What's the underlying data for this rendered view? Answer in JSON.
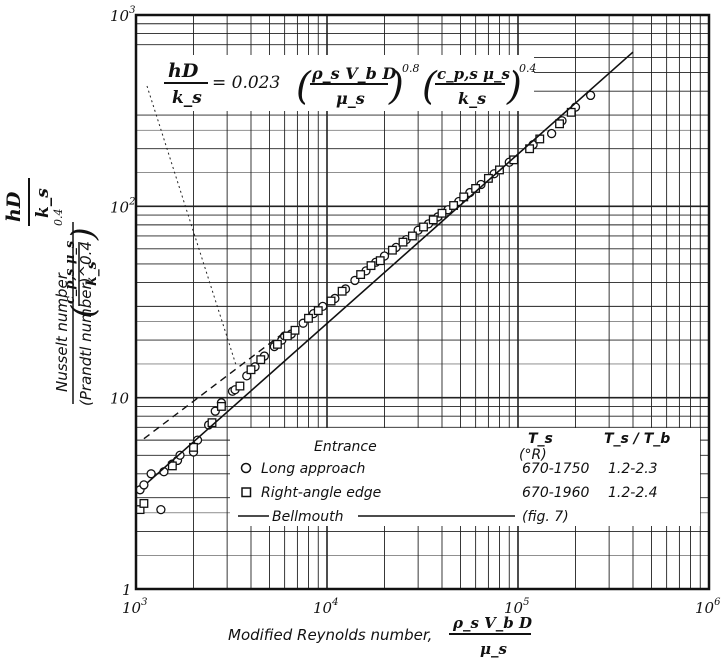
{
  "chart_data": {
    "type": "scatter",
    "x_scale": "log",
    "y_scale": "log",
    "xlim": [
      1000,
      1000000
    ],
    "ylim": [
      1,
      1000
    ],
    "grid": true,
    "x_ticks": [
      {
        "base": "10",
        "exp": "3",
        "value": 1000
      },
      {
        "base": "10",
        "exp": "4",
        "value": 10000
      },
      {
        "base": "10",
        "exp": "5",
        "value": 100000
      },
      {
        "base": "10",
        "exp": "6",
        "value": 1000000
      }
    ],
    "y_ticks": [
      {
        "base": "1",
        "exp": "",
        "value": 1
      },
      {
        "base": "10",
        "exp": "",
        "value": 10
      },
      {
        "base": "10",
        "exp": "2",
        "value": 100
      },
      {
        "base": "10",
        "exp": "3",
        "value": 1000
      }
    ],
    "xlabel": "Modified Reynolds number,",
    "xlabel_fraction": {
      "num": "ρ_s V_b D",
      "den": "μ_s"
    },
    "ylabel": {
      "top_num": "hD",
      "top_den": "k_s",
      "line1": "Nusselt number",
      "line2": "(Prandtl number)^0.4",
      "frac_num": "c_p,s μ_s",
      "frac_den": "k_s",
      "power": "0.4"
    },
    "equation": {
      "lhs_num": "hD",
      "lhs_den": "k_s",
      "eq": "= 0.023",
      "f1_num": "ρ_s V_b D",
      "f1_den": "μ_s",
      "p1": "0.8",
      "f2_num": "c_p,s μ_s",
      "f2_den": "k_s",
      "p2": "0.4"
    },
    "legend": {
      "header_entrance": "Entrance",
      "header_ts": "T_s",
      "header_ts_unit": "(°R)",
      "header_ratio": "T_s / T_b",
      "entries": [
        {
          "marker": "circle",
          "label": "Long approach",
          "ts_range": "670-1750",
          "ratio_range": "1.2-2.3"
        },
        {
          "marker": "square",
          "label": "Right-angle edge",
          "ts_range": "670-1960",
          "ratio_range": "1.2-2.4"
        },
        {
          "marker": "line",
          "label": "Bellmouth",
          "ts_range": "(fig. 7)",
          "ratio_range": ""
        }
      ]
    },
    "series": [
      {
        "name": "Long approach",
        "marker": "circle",
        "points": [
          [
            1050,
            3.3
          ],
          [
            1100,
            3.5
          ],
          [
            1200,
            4.0
          ],
          [
            1350,
            2.6
          ],
          [
            1400,
            4.1
          ],
          [
            1550,
            4.5
          ],
          [
            1650,
            4.7
          ],
          [
            1700,
            5.0
          ],
          [
            2000,
            5.2
          ],
          [
            2100,
            6.0
          ],
          [
            2400,
            7.2
          ],
          [
            2600,
            8.5
          ],
          [
            2800,
            9.4
          ],
          [
            3200,
            10.8
          ],
          [
            3300,
            11.0
          ],
          [
            3800,
            13.0
          ],
          [
            4200,
            14.5
          ],
          [
            4700,
            16.5
          ],
          [
            5300,
            18.5
          ],
          [
            5800,
            20.0
          ],
          [
            6000,
            21.0
          ],
          [
            6500,
            21.5
          ],
          [
            7500,
            24.5
          ],
          [
            8500,
            27.5
          ],
          [
            9500,
            30.0
          ],
          [
            11000,
            33.0
          ],
          [
            12500,
            37.0
          ],
          [
            14000,
            41.0
          ],
          [
            16000,
            46.0
          ],
          [
            18000,
            51.0
          ],
          [
            20000,
            55.0
          ],
          [
            23000,
            61.0
          ],
          [
            26000,
            67.0
          ],
          [
            30000,
            75.0
          ],
          [
            34000,
            81.0
          ],
          [
            38000,
            88.0
          ],
          [
            43000,
            96.0
          ],
          [
            49000,
            106.0
          ],
          [
            56000,
            118.0
          ],
          [
            64000,
            130.0
          ],
          [
            75000,
            148.0
          ],
          [
            90000,
            170.0
          ],
          [
            120000,
            210.0
          ],
          [
            150000,
            240.0
          ],
          [
            170000,
            280.0
          ],
          [
            200000,
            330.0
          ],
          [
            240000,
            380.0
          ]
        ]
      },
      {
        "name": "Right-angle edge",
        "marker": "square",
        "points": [
          [
            1050,
            2.6
          ],
          [
            1100,
            2.8
          ],
          [
            1550,
            4.4
          ],
          [
            2000,
            5.5
          ],
          [
            2500,
            7.4
          ],
          [
            2800,
            9.0
          ],
          [
            3500,
            11.5
          ],
          [
            4000,
            14.0
          ],
          [
            4500,
            15.8
          ],
          [
            5500,
            19.0
          ],
          [
            6200,
            21.0
          ],
          [
            6800,
            22.5
          ],
          [
            8000,
            26.0
          ],
          [
            9000,
            28.5
          ],
          [
            10500,
            32.0
          ],
          [
            12000,
            36.0
          ],
          [
            15000,
            44.0
          ],
          [
            17000,
            49.0
          ],
          [
            19000,
            52.0
          ],
          [
            22000,
            59.0
          ],
          [
            25000,
            65.0
          ],
          [
            28000,
            70.0
          ],
          [
            32000,
            78.0
          ],
          [
            36000,
            85.0
          ],
          [
            40000,
            92.0
          ],
          [
            46000,
            101.0
          ],
          [
            52000,
            112.0
          ],
          [
            60000,
            124.0
          ],
          [
            70000,
            140.0
          ],
          [
            80000,
            155.0
          ],
          [
            95000,
            175.0
          ],
          [
            115000,
            200.0
          ],
          [
            130000,
            225.0
          ],
          [
            165000,
            270.0
          ],
          [
            190000,
            310.0
          ]
        ]
      },
      {
        "name": "Bellmouth",
        "marker": "line",
        "line_x": [
          1150,
          400000
        ]
      }
    ],
    "correlation_line": {
      "style": "dashed",
      "coeff": 0.023,
      "exponent": 0.8,
      "x_range": [
        1100,
        6000
      ]
    }
  }
}
